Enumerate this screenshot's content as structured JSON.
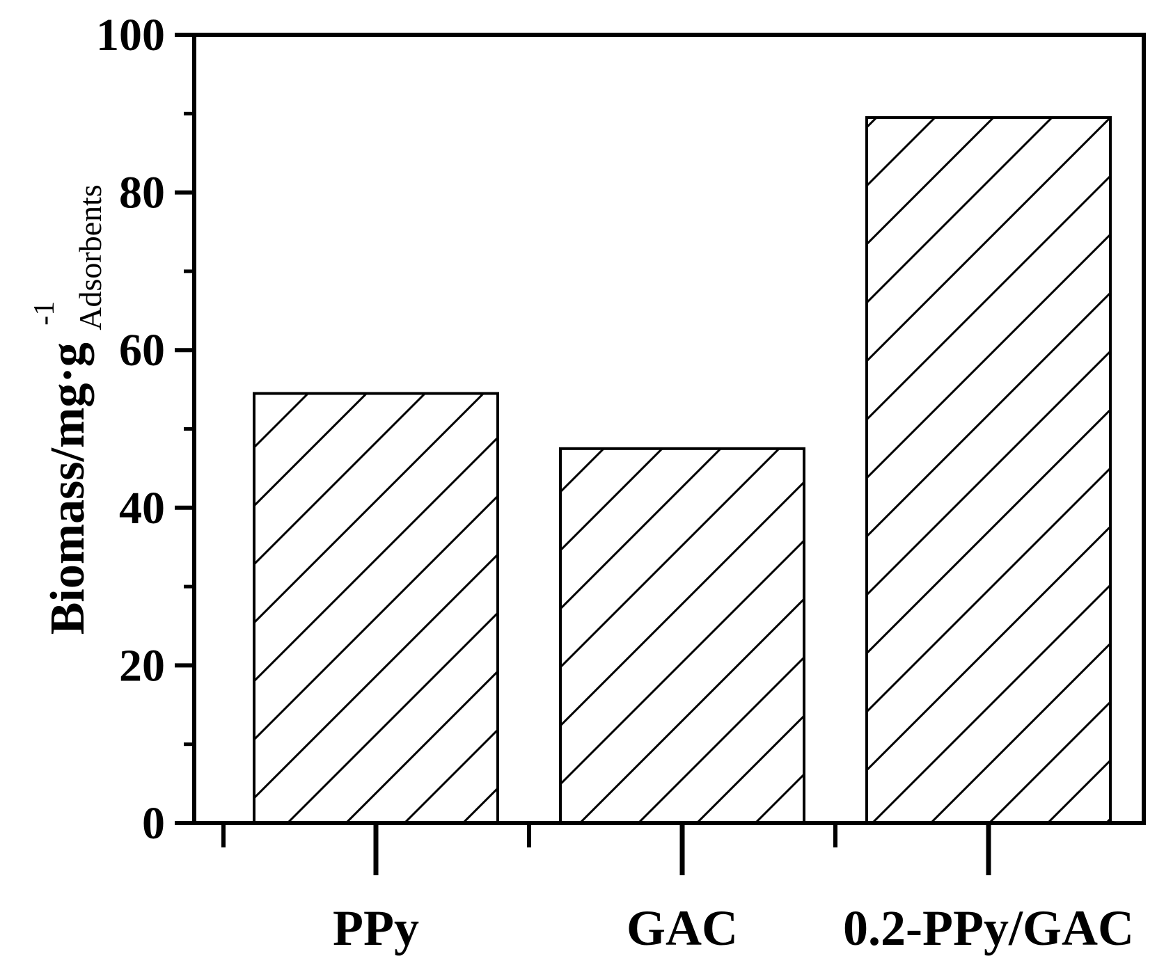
{
  "chart_data": {
    "type": "bar",
    "categories": [
      "PPy",
      "GAC",
      "0.2-PPy/GAC"
    ],
    "values": [
      54.5,
      47.5,
      89.5
    ],
    "xlabel": "",
    "ylabel": {
      "main": "Biomass/mg·g",
      "superscript": "-1",
      "subscript": "Adsorbents"
    },
    "ylim": [
      0,
      100
    ],
    "yticks": [
      "0",
      "20",
      "40",
      "60",
      "80",
      "100"
    ],
    "yminor_step": 10,
    "bar_fill": "#ffffff",
    "bar_stroke": "#000000",
    "bar_pattern": "diagonal-hatch",
    "grid": false,
    "legend": false
  }
}
